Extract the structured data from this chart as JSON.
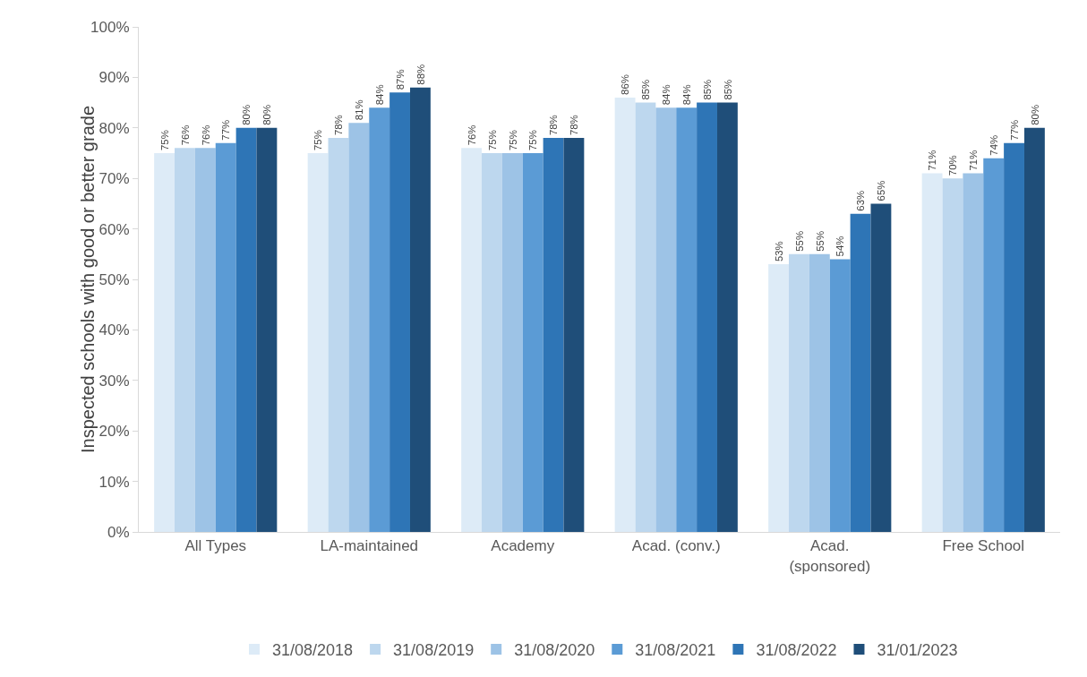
{
  "chart_data": {
    "type": "bar",
    "ylabel": "Inspected schools with good or better grade",
    "categories": [
      "All Types",
      "LA-maintained",
      "Academy",
      "Acad. (conv.)",
      "Acad. (sponsored)",
      "Free School"
    ],
    "series": [
      {
        "name": "31/08/2018",
        "color": "#ddebf7",
        "values": [
          75,
          75,
          76,
          86,
          53,
          71
        ],
        "value_labels": [
          "75%",
          "75%",
          "76%",
          "86%",
          "53%",
          "71%"
        ]
      },
      {
        "name": "31/08/2019",
        "color": "#bdd7ee",
        "values": [
          76,
          78,
          75,
          85,
          55,
          70
        ],
        "value_labels": [
          "76%",
          "78%",
          "75%",
          "85%",
          "55%",
          "70%"
        ]
      },
      {
        "name": "31/08/2020",
        "color": "#9dc3e6",
        "values": [
          76,
          81,
          75,
          84,
          55,
          71
        ],
        "value_labels": [
          "76%",
          "81%",
          "75%",
          "84%",
          "55%",
          "71%"
        ]
      },
      {
        "name": "31/08/2021",
        "color": "#5b9bd5",
        "values": [
          77,
          84,
          75,
          84,
          54,
          74
        ],
        "value_labels": [
          "77%",
          "84%",
          "75%",
          "84%",
          "54%",
          "74%"
        ]
      },
      {
        "name": "31/08/2022",
        "color": "#2e75b6",
        "values": [
          80,
          87,
          78,
          85,
          63,
          77
        ],
        "value_labels": [
          "80%",
          "87%",
          "78%",
          "85%",
          "63%",
          "77%"
        ]
      },
      {
        "name": "31/01/2023",
        "color": "#1f4e79",
        "values": [
          80,
          88,
          78,
          85,
          65,
          80
        ],
        "value_labels": [
          "80%",
          "88%",
          "78%",
          "85%",
          "65%",
          "80%"
        ]
      }
    ],
    "ylim": [
      0,
      100
    ],
    "yticks": [
      {
        "value": 0,
        "label": "0%"
      },
      {
        "value": 10,
        "label": "10%"
      },
      {
        "value": 20,
        "label": "20%"
      },
      {
        "value": 30,
        "label": "30%"
      },
      {
        "value": 40,
        "label": "40%"
      },
      {
        "value": 50,
        "label": "50%"
      },
      {
        "value": 60,
        "label": "60%"
      },
      {
        "value": 70,
        "label": "70%"
      },
      {
        "value": 80,
        "label": "80%"
      },
      {
        "value": 90,
        "label": "90%"
      },
      {
        "value": 100,
        "label": "100%"
      }
    ],
    "grid": false,
    "legend": "bottom"
  }
}
